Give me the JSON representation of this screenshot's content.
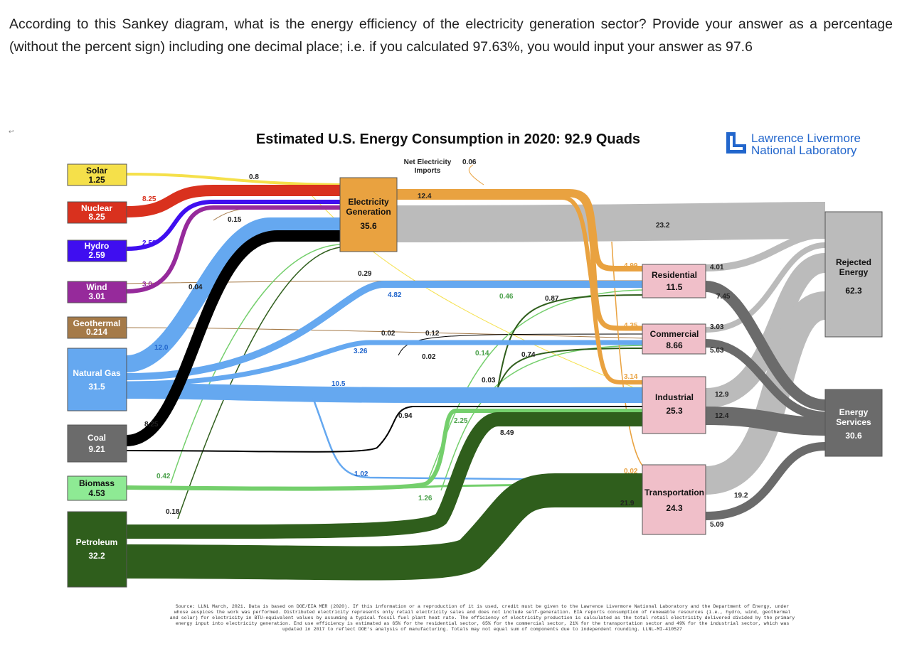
{
  "question": "According to this Sankey diagram, what is the energy efficiency of the electricity generation sector? Provide your answer as a percentage (without the percent sign) including one decimal place; i.e. if you calculated 97.63%, you would input your answer as 97.6",
  "tiny_mark": "↩",
  "title": "Estimated U.S. Energy Consumption in 2020: 92.9 Quads",
  "logo": {
    "line1": "Lawrence Livermore",
    "line2": "National Laboratory"
  },
  "colors": {
    "solar": "#f5e04a",
    "nuclear": "#d9311e",
    "hydro": "#3f0ef0",
    "wind": "#962a9b",
    "geothermal": "#a57a48",
    "natural_gas": "#65a8f0",
    "coal": "#000000",
    "biomass": "#74cf6c",
    "petroleum": "#2f5e1c",
    "electricity": "#e9a240",
    "rejected": "#bbbbbb",
    "services": "#6b6b6b",
    "sector": "#f0bfc9",
    "accent_blue": "#2266cc"
  },
  "sources": [
    {
      "name": "Solar",
      "value": "1.25"
    },
    {
      "name": "Nuclear",
      "value": "8.25"
    },
    {
      "name": "Hydro",
      "value": "2.59"
    },
    {
      "name": "Wind",
      "value": "3.01"
    },
    {
      "name": "Geothermal",
      "value": "0.214"
    },
    {
      "name": "Natural Gas",
      "value": "31.5"
    },
    {
      "name": "Coal",
      "value": "9.21"
    },
    {
      "name": "Biomass",
      "value": "4.53"
    },
    {
      "name": "Petroleum",
      "value": "32.2"
    }
  ],
  "electricity": {
    "line1": "Electricity",
    "line2": "Generation",
    "value": "35.6"
  },
  "net_imports": {
    "line1": "Net Electricity",
    "line2": "Imports",
    "value": "0.06"
  },
  "sectors": [
    {
      "name": "Residential",
      "value": "11.5"
    },
    {
      "name": "Commercial",
      "value": "8.66"
    },
    {
      "name": "Industrial",
      "value": "25.3"
    },
    {
      "name": "Transportation",
      "value": "24.3"
    }
  ],
  "rejected": {
    "line1": "Rejected",
    "line2": "Energy",
    "value": "62.3"
  },
  "services": {
    "line1": "Energy",
    "line2": "Services",
    "value": "30.6"
  },
  "flow_labels": {
    "solar_elec": "0.8",
    "nuclear_elec": "8.25",
    "hydro_elec": "2.58",
    "wind_elec": "3.0",
    "wind_small": "0.04",
    "hydro_small": "0.15",
    "geo_small": "0.02",
    "geo_sm2": "0.12",
    "ng_elec": "12.0",
    "ng_res": "4.82",
    "ng_com": "3.26",
    "ng_ind": "10.5",
    "ng_trans": "1.02",
    "coal_elec": "8.25",
    "coal_ind": "0.94",
    "coal_com": "0.02",
    "bio_elec": "0.42",
    "bio_res": "0.46",
    "bio_com": "0.14",
    "bio_ind": "2.25",
    "bio_trans": "1.26",
    "pet_elec": "0.18",
    "pet_res": "0.87",
    "pet_com": "0.74",
    "pet_ind": "8.49",
    "pet_trans": "21.9",
    "solar_res": "0.29",
    "solar_ind": "0.03",
    "elec_out": "12.4",
    "elec_rej": "23.2",
    "elec_res": "4.99",
    "elec_com": "4.35",
    "elec_ind": "3.14",
    "elec_trans": "0.02",
    "res_rej": "4.01",
    "res_srv": "7.45",
    "com_rej": "3.03",
    "com_srv": "5.63",
    "ind_rej": "12.9",
    "ind_srv": "12.4",
    "trans_rej": "19.2",
    "trans_srv": "5.09"
  },
  "source_note": "Source: LLNL March, 2021. Data is based on DOE/EIA MER (2020). If this information or a reproduction of it is used, credit must be given to the Lawrence Livermore National Laboratory and the Department of Energy, under whose auspices the work was performed. Distributed electricity represents only retail electricity sales and does not include self-generation. EIA reports consumption of renewable resources (i.e., hydro, wind, geothermal and solar) for electricity in BTU-equivalent values by assuming a typical fossil fuel plant heat rate. The efficiency of electricity production is calculated as the total retail electricity delivered divided by the primary energy input into electricity generation. End use efficiency is estimated as 65% for the residential sector, 65% for the commercial sector, 21% for the transportation sector and 49% for the industrial sector, which was updated in 2017 to reflect DOE's analysis of manufacturing. Totals may not equal sum of components due to independent rounding. LLNL-MI-410527"
}
